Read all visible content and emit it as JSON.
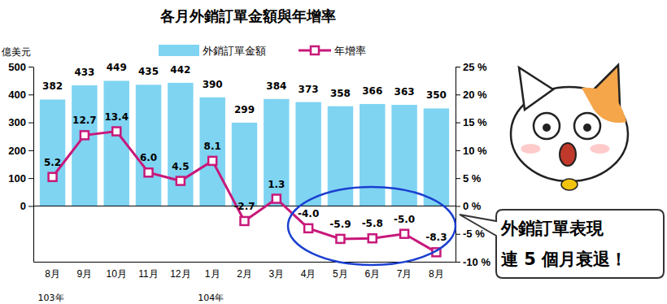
{
  "chart_data": {
    "type": "bar",
    "title": "各月外銷訂單金額與年增率",
    "y_label": "億美元",
    "categories": [
      "8月",
      "9月",
      "10月",
      "11月",
      "12月",
      "1月",
      "2月",
      "3月",
      "4月",
      "5月",
      "6月",
      "7月",
      "8月"
    ],
    "annotations": [
      {
        "text": "103年",
        "index": 0
      },
      {
        "text": "104年",
        "index": 5
      },
      {
        "text": "外銷訂單表現"
      },
      {
        "text": "連 5 個月衰退！"
      }
    ],
    "series": [
      {
        "name": "外銷訂單金額",
        "type": "bar",
        "color": "#7fd4f2",
        "data_labels": true,
        "values": [
          382,
          433,
          449,
          435,
          442,
          390,
          299,
          384,
          373,
          358,
          366,
          363,
          350
        ]
      },
      {
        "name": "年增率",
        "type": "line",
        "axis": "y2",
        "color": "#c8187a",
        "marker": "square",
        "data_labels": true,
        "values": [
          5.2,
          12.7,
          13.4,
          6.0,
          4.5,
          8.1,
          -2.7,
          1.3,
          -4.0,
          -5.9,
          -5.8,
          -5.0,
          -8.3
        ],
        "value_labels": [
          "5.2",
          "12.7",
          "13.4",
          "6.0",
          "4.5",
          "8.1",
          "-2.7",
          "1.3",
          "-4.0",
          "-5.9",
          "-5.8",
          "-5.0",
          "-8.3"
        ]
      }
    ],
    "ylim": [
      -200,
      500
    ],
    "yticks": [
      0,
      100,
      200,
      300,
      400,
      500
    ],
    "y2lim": [
      -10,
      25
    ],
    "y2ticks": [
      {
        "value": 25,
        "label": "25 %"
      },
      {
        "value": 20,
        "label": "20 %"
      },
      {
        "value": 15,
        "label": "15 %"
      },
      {
        "value": 10,
        "label": "10 %"
      },
      {
        "value": 5,
        "label": "5 %"
      },
      {
        "value": 0,
        "label": "0 %"
      },
      {
        "value": -5,
        "label": "-5 %"
      },
      {
        "value": -10,
        "label": "-10 %"
      }
    ],
    "legend": "top"
  }
}
